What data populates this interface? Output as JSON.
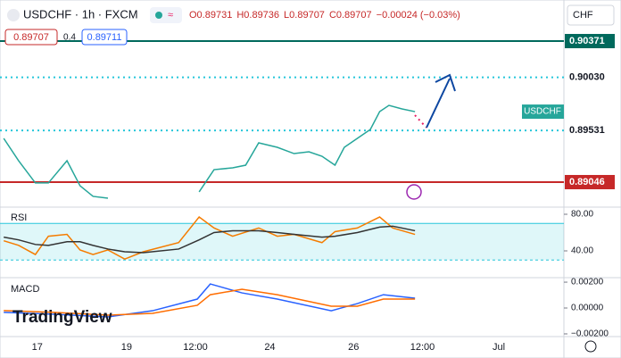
{
  "header": {
    "symbol": "USDCHF · 1h · FXCM",
    "ohlc": [
      "O0.89731",
      "H0.89736",
      "L0.89707",
      "C0.89707",
      "−0.00024 (−0.03%)"
    ],
    "sell": "0.89707",
    "spread": "0.4",
    "buy": "0.89711",
    "currency": "CHF",
    "watermark": "TradingView"
  },
  "chart_data": [
    {
      "type": "line",
      "xlim": [
        0,
        303
      ],
      "xticks": [
        {
          "value": 20,
          "label": "17"
        },
        {
          "value": 68,
          "label": "19"
        },
        {
          "value": 105,
          "label": "12:00"
        },
        {
          "value": 145,
          "label": "24"
        },
        {
          "value": 190,
          "label": "26"
        },
        {
          "value": 227,
          "label": "12:00"
        },
        {
          "value": 268,
          "label": "Jul"
        }
      ],
      "ylim": [
        0.88811,
        0.90757
      ],
      "yticks": [
        0.90371,
        {
          "value": 0.9003,
          "label": "0.90030"
        },
        0.89531,
        0.89046
      ],
      "level_colors": [
        "#00695c",
        "#26c6da",
        "#26c6da",
        "#c62828"
      ],
      "level_dashed": [
        false,
        true,
        true,
        false
      ],
      "level_boxed": [
        true,
        false,
        false,
        true
      ],
      "x": [
        2,
        10,
        19,
        26,
        36,
        43,
        50,
        58,
        80,
        107,
        115,
        125,
        132,
        139,
        149,
        158,
        166,
        173,
        180,
        185,
        192,
        199,
        204,
        209,
        216,
        223
      ],
      "series": [
        {
          "name": "USDCHF",
          "color": "#26a69a",
          "values": [
            0.89457,
            0.89247,
            0.89038,
            0.89038,
            0.89247,
            0.89012,
            0.88912,
            0.88895,
            null,
            0.88954,
            0.89163,
            0.8918,
            0.89205,
            0.89415,
            0.89373,
            0.89314,
            0.89331,
            0.89289,
            0.89205,
            0.89373,
            0.89457,
            0.89541,
            0.89708,
            0.89767,
            0.89734,
            0.89708
          ]
        }
      ]
    },
    {
      "type": "line",
      "title": "RSI",
      "xlim": [
        0,
        303
      ],
      "ylim": [
        11.7,
        87.8
      ],
      "yticks": [
        {
          "value": 80,
          "label": "80.00"
        },
        {
          "value": 40,
          "label": "40.00"
        }
      ],
      "band": [
        30,
        70
      ],
      "x": [
        2,
        10,
        19,
        26,
        36,
        43,
        50,
        58,
        67,
        77,
        96,
        107,
        115,
        125,
        139,
        149,
        158,
        173,
        180,
        192,
        204,
        211,
        223
      ],
      "series": [
        {
          "name": "RSI",
          "color": "#f57c00",
          "values": [
            51,
            46,
            36,
            56,
            58,
            41,
            36,
            41,
            31,
            39,
            49,
            77,
            65,
            56,
            65,
            56,
            58,
            49,
            61,
            65,
            77,
            65,
            58
          ]
        },
        {
          "color": "#333333",
          "values": [
            55,
            52,
            47,
            46,
            50,
            50,
            46,
            42,
            39,
            38,
            42,
            52,
            60,
            62,
            62,
            60,
            58,
            55,
            56,
            60,
            66,
            67,
            62
          ]
        }
      ]
    },
    {
      "type": "line",
      "title": "MACD",
      "xlim": [
        0,
        303
      ],
      "ylim": [
        -0.00214,
        0.00228
      ],
      "yticks": [
        {
          "value": 0.002,
          "label": "0.00200"
        },
        {
          "value": 0,
          "label": "0.00000"
        },
        {
          "value": -0.002,
          "label": "−0.00200"
        }
      ],
      "x": [
        2,
        29,
        58,
        82,
        106,
        113,
        130,
        149,
        178,
        192,
        206,
        223
      ],
      "series": [
        {
          "color": "#2962ff",
          "values": [
            -0.00034,
            -0.00048,
            -0.00069,
            -0.00021,
            0.00069,
            0.00186,
            0.00117,
            0.00069,
            -0.00021,
            0.00034,
            0.00103,
            0.00076
          ]
        },
        {
          "color": "#ff6d00",
          "values": [
            -0.0002,
            -0.00034,
            -0.00055,
            -0.00041,
            0.00021,
            0.00103,
            0.00145,
            0.00103,
            0.00014,
            0.00014,
            0.00069,
            0.00069
          ]
        }
      ]
    }
  ]
}
